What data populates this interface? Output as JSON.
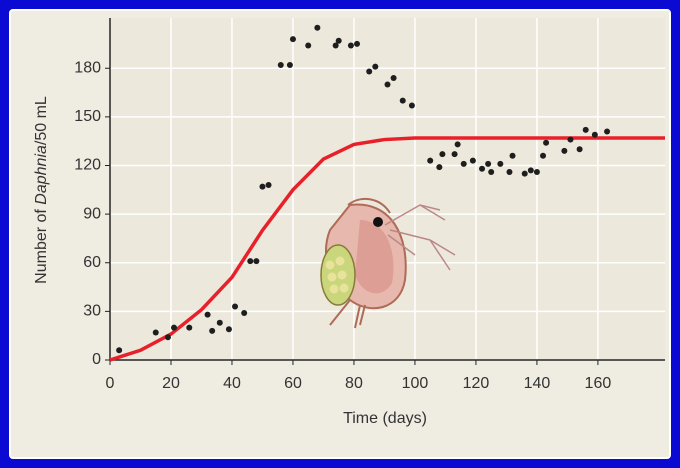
{
  "chart_data": {
    "type": "scatter",
    "x_label": "Time (days)",
    "y_label_parts": [
      "Number of ",
      "Daphnia",
      "/50 mL"
    ],
    "xlim": [
      0,
      182
    ],
    "ylim": [
      0,
      211
    ],
    "xticks": [
      0,
      20,
      40,
      60,
      80,
      100,
      120,
      140,
      160
    ],
    "yticks": [
      0,
      30,
      60,
      90,
      120,
      150,
      180
    ],
    "grid": true,
    "color": "#1e1e1e",
    "x": [
      3,
      15,
      19,
      21,
      26,
      32,
      33.5,
      36,
      39,
      41,
      44,
      46,
      48,
      50,
      52,
      56,
      59,
      60,
      65,
      68,
      74,
      75,
      79,
      81,
      85,
      87,
      91,
      93,
      96,
      99,
      105,
      108,
      109,
      113,
      114,
      116,
      119,
      122,
      124,
      125,
      128,
      131,
      132,
      136,
      138,
      140,
      142,
      143,
      149,
      151,
      154,
      156,
      159,
      163
    ],
    "values": [
      6,
      17,
      14,
      20,
      20,
      28,
      18,
      23,
      19,
      33,
      29,
      61,
      61,
      107,
      108,
      182,
      182,
      198,
      194,
      205,
      194,
      197,
      194,
      195,
      178,
      181,
      170,
      174,
      160,
      157,
      123,
      119,
      127,
      127,
      133,
      121,
      123,
      118,
      121,
      116,
      121,
      116,
      126,
      115,
      117,
      116,
      126,
      134,
      129,
      136,
      130,
      142,
      139,
      141
    ],
    "curve": {
      "color": "#e8202a",
      "x": [
        0,
        10,
        20,
        30,
        40,
        50,
        60,
        70,
        80,
        90,
        100,
        120,
        140,
        160,
        182
      ],
      "values": [
        0,
        6,
        16,
        31,
        51,
        80,
        105,
        124,
        133,
        136,
        137,
        137,
        137,
        137,
        137
      ]
    }
  }
}
